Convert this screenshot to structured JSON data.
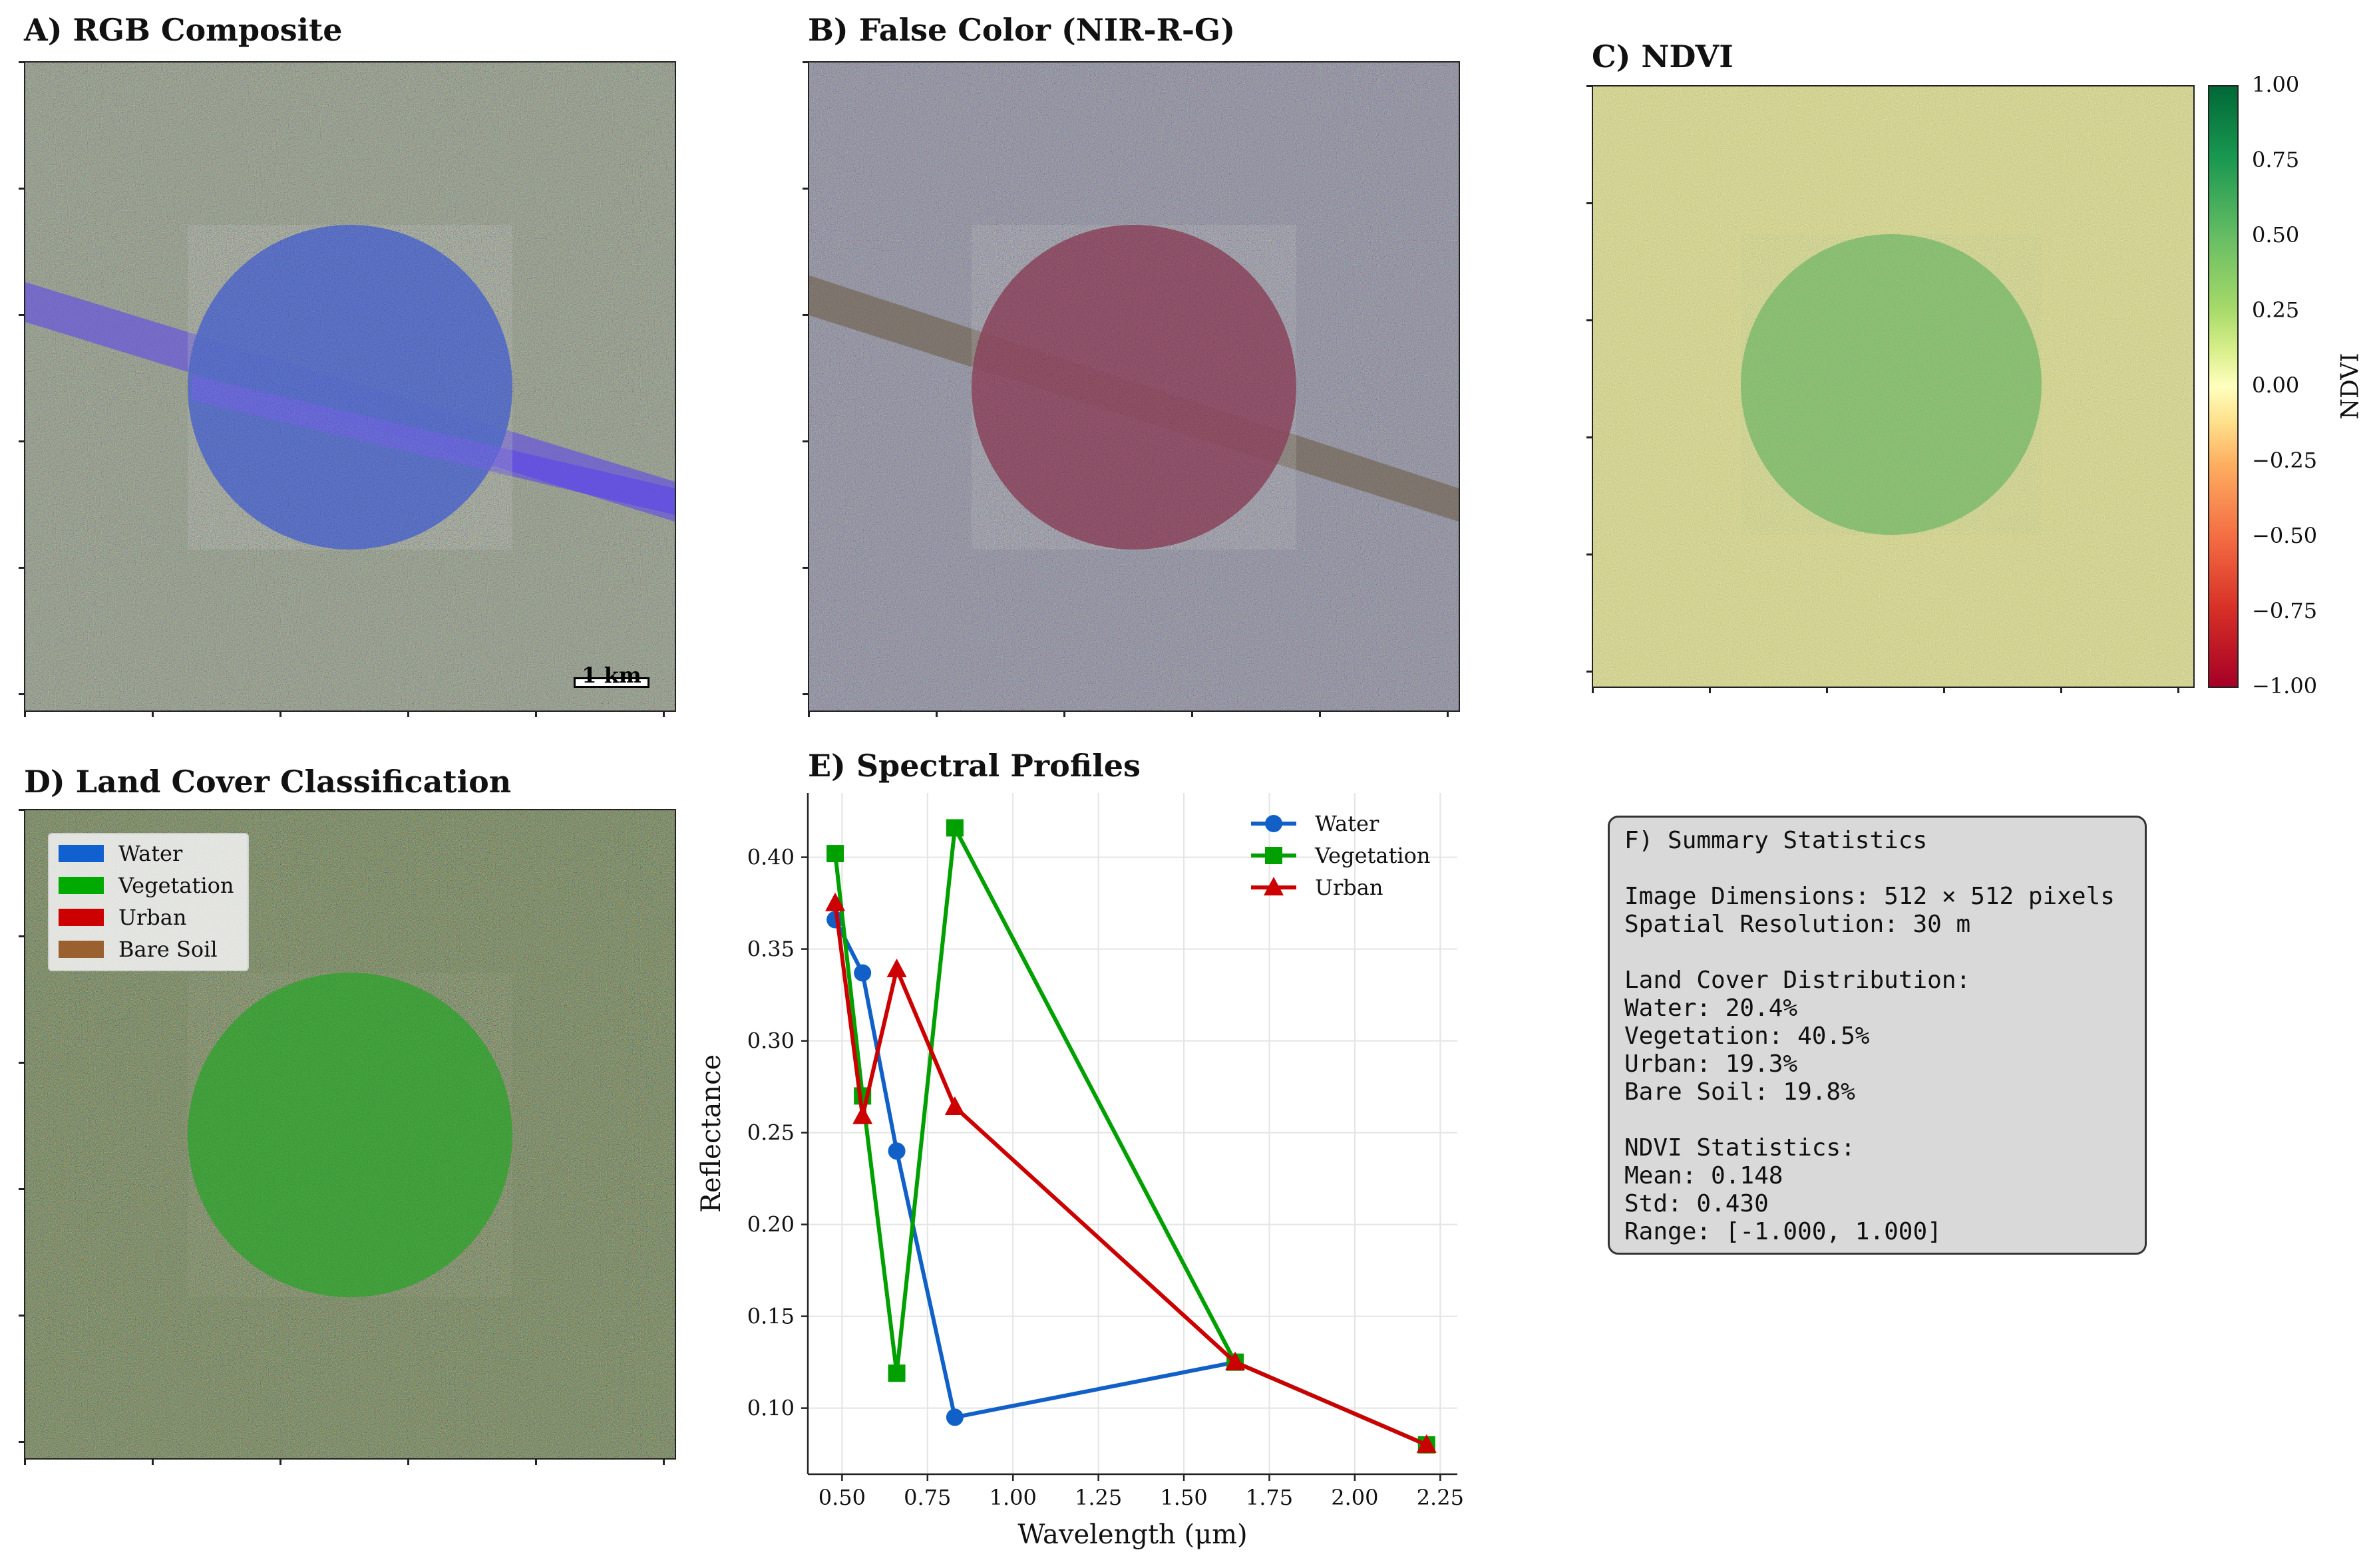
{
  "panels": {
    "a_title": "A) RGB Composite",
    "b_title": "B) False Color (NIR-R-G)",
    "c_title": "C) NDVI",
    "d_title": "D) Land Cover Classification",
    "e_title": "E) Spectral Profiles"
  },
  "scalebar": {
    "label": "1 km"
  },
  "colorbar": {
    "label": "NDVI",
    "ticks": [
      "1.00",
      "0.75",
      "0.50",
      "0.25",
      "0.00",
      "−0.25",
      "−0.50",
      "−0.75",
      "−1.00"
    ]
  },
  "land_cover_legend": {
    "items": [
      {
        "label": "Water",
        "color": "#1060d0"
      },
      {
        "label": "Vegetation",
        "color": "#00aa00"
      },
      {
        "label": "Urban",
        "color": "#cc0000"
      },
      {
        "label": "Bare Soil",
        "color": "#9a6030"
      }
    ]
  },
  "summary": {
    "lines": [
      "F) Summary Statistics",
      "",
      "Image Dimensions: 512 × 512 pixels",
      "Spatial Resolution: 30 m",
      "",
      "Land Cover Distribution:",
      "Water: 20.4%",
      "Vegetation: 40.5%",
      "Urban: 19.3%",
      "Bare Soil: 19.8%",
      "",
      "NDVI Statistics:",
      "Mean: 0.148",
      "Std: 0.430",
      "Range: [-1.000, 1.000]"
    ]
  },
  "colors": {
    "water": "#1060c8",
    "vegetation": "#00a000",
    "urban": "#cc0000",
    "stats_bg": "#d9d9d9"
  },
  "chart_data": {
    "type": "line",
    "title": "E) Spectral Profiles",
    "xlabel": "Wavelength (μm)",
    "ylabel": "Reflectance",
    "xlim": [
      0.4,
      2.3
    ],
    "ylim": [
      0.064,
      0.435
    ],
    "xticks": [
      0.5,
      0.75,
      1.0,
      1.25,
      1.5,
      1.75,
      2.0,
      2.25
    ],
    "xtick_labels": [
      "0.50",
      "0.75",
      "1.00",
      "1.25",
      "1.50",
      "1.75",
      "2.00",
      "2.25"
    ],
    "yticks": [
      0.1,
      0.15,
      0.2,
      0.25,
      0.3,
      0.35,
      0.4
    ],
    "ytick_labels": [
      "0.10",
      "0.15",
      "0.20",
      "0.25",
      "0.30",
      "0.35",
      "0.40"
    ],
    "grid": true,
    "legend_position": "top-right",
    "series": [
      {
        "name": "Water",
        "marker": "circle",
        "color": "#1060c8",
        "x": [
          0.48,
          0.56,
          0.66,
          0.83,
          1.65,
          2.21
        ],
        "y": [
          0.366,
          0.337,
          0.24,
          0.095,
          0.125,
          0.08
        ]
      },
      {
        "name": "Vegetation",
        "marker": "square",
        "color": "#00a000",
        "x": [
          0.48,
          0.56,
          0.66,
          0.83,
          1.65,
          2.21
        ],
        "y": [
          0.402,
          0.27,
          0.119,
          0.416,
          0.125,
          0.08
        ]
      },
      {
        "name": "Urban",
        "marker": "triangle",
        "color": "#cc0000",
        "x": [
          0.48,
          0.56,
          0.66,
          0.83,
          1.65,
          2.21
        ],
        "y": [
          0.375,
          0.259,
          0.339,
          0.264,
          0.125,
          0.08
        ]
      }
    ]
  }
}
